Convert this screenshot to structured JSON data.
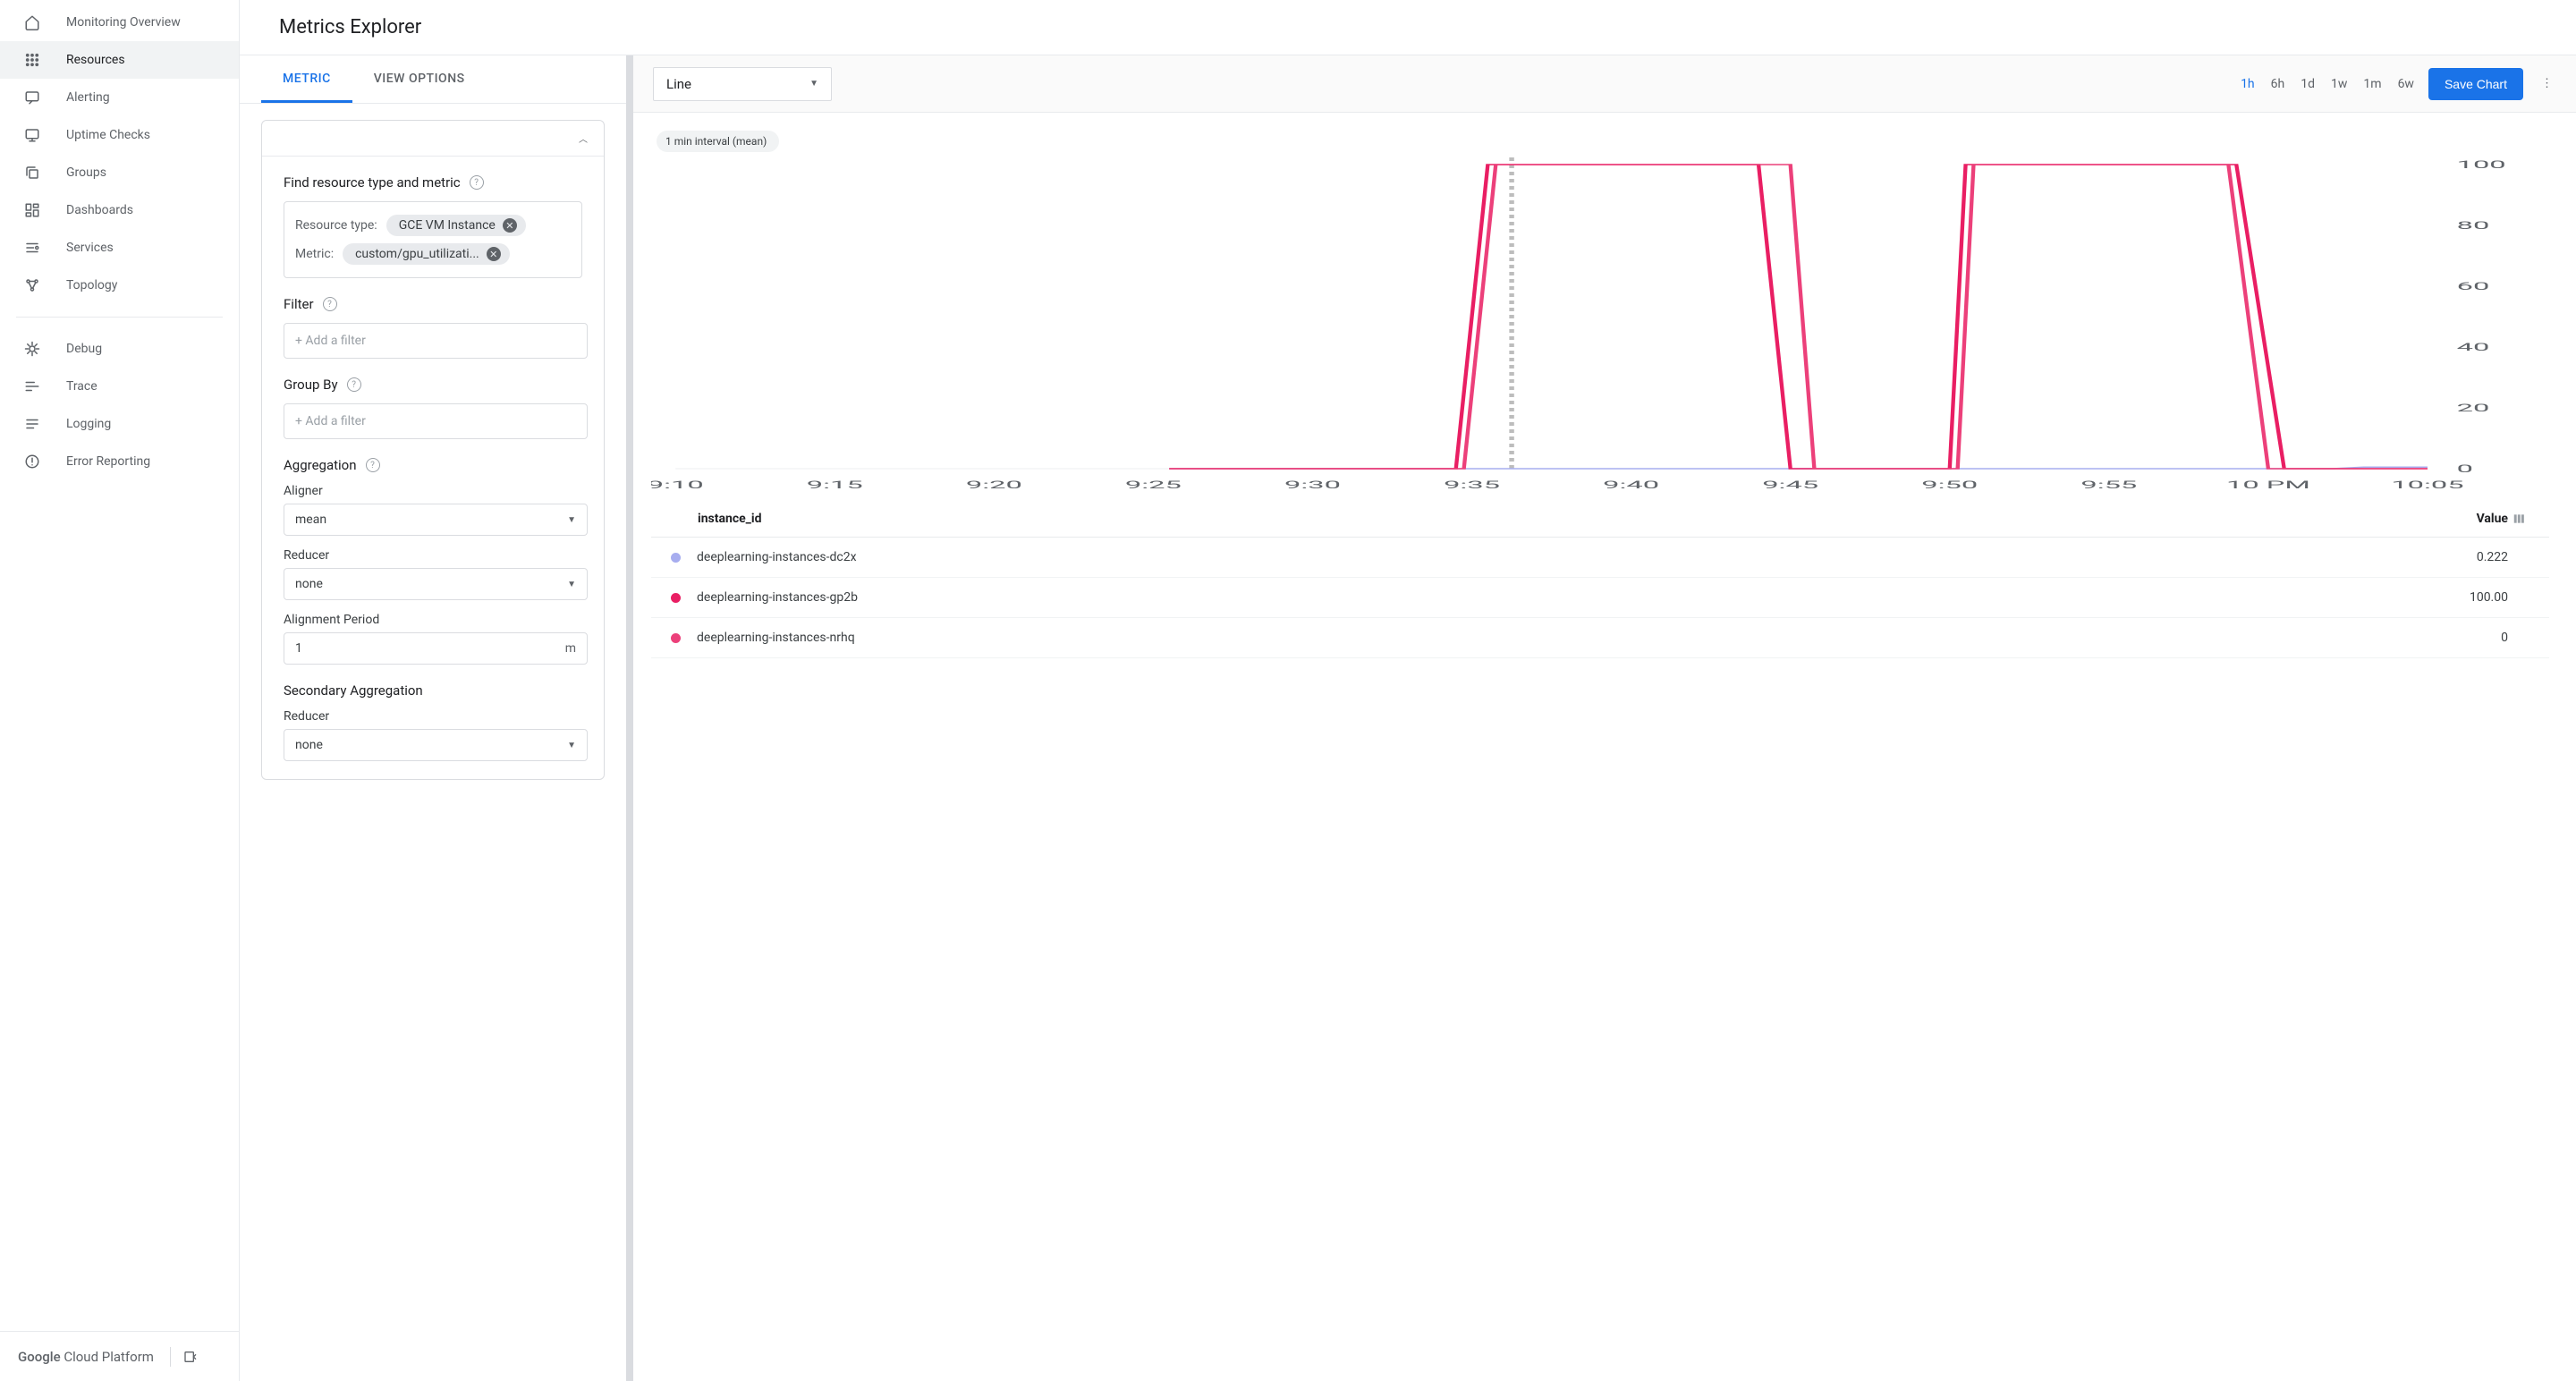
{
  "sidebar": {
    "items": [
      {
        "icon": "home",
        "label": "Monitoring Overview"
      },
      {
        "icon": "grid",
        "label": "Resources",
        "active": true
      },
      {
        "icon": "chat",
        "label": "Alerting"
      },
      {
        "icon": "monitor",
        "label": "Uptime Checks"
      },
      {
        "icon": "copy",
        "label": "Groups"
      },
      {
        "icon": "dashboard",
        "label": "Dashboards"
      },
      {
        "icon": "services",
        "label": "Services"
      },
      {
        "icon": "topology",
        "label": "Topology"
      }
    ],
    "secondary": [
      {
        "icon": "debug",
        "label": "Debug"
      },
      {
        "icon": "trace",
        "label": "Trace"
      },
      {
        "icon": "logging",
        "label": "Logging"
      },
      {
        "icon": "error",
        "label": "Error Reporting"
      }
    ],
    "footer": {
      "brand_bold": "Google",
      "brand_rest": " Cloud Platform"
    }
  },
  "header": {
    "title": "Metrics Explorer"
  },
  "config": {
    "tabs": [
      {
        "label": "METRIC",
        "active": true
      },
      {
        "label": "VIEW OPTIONS"
      }
    ],
    "find_title": "Find resource type and metric",
    "resource_type_label": "Resource type:",
    "resource_type_value": "GCE VM Instance",
    "metric_label": "Metric:",
    "metric_value": "custom/gpu_utilizati...",
    "filter_title": "Filter",
    "filter_placeholder": "+ Add a filter",
    "groupby_title": "Group By",
    "groupby_placeholder": "+ Add a filter",
    "aggregation_title": "Aggregation",
    "aligner_label": "Aligner",
    "aligner_value": "mean",
    "reducer_label": "Reducer",
    "reducer_value": "none",
    "alignment_period_label": "Alignment Period",
    "alignment_period_value": "1",
    "alignment_period_unit": "m",
    "secondary_agg_title": "Secondary Aggregation",
    "secondary_reducer_label": "Reducer",
    "secondary_reducer_value": "none"
  },
  "toolbar": {
    "chart_type": "Line",
    "time_ranges": [
      "1h",
      "6h",
      "1d",
      "1w",
      "1m",
      "6w"
    ],
    "time_active": "1h",
    "save_label": "Save Chart"
  },
  "chart": {
    "interval_label": "1 min interval (mean)",
    "type": "line",
    "ylim": [
      0,
      100
    ],
    "ytick_step": 20,
    "yticks": [
      0,
      20,
      40,
      60,
      80,
      100
    ],
    "y_extra_tick": 120,
    "xticks": [
      "9:10",
      "9:15",
      "9:20",
      "9:25",
      "9:30",
      "9:35",
      "9:40",
      "9:45",
      "9:50",
      "9:55",
      "10 PM",
      "10:05"
    ],
    "cursor_position_index": 5.25,
    "background_color": "#ffffff",
    "grid_color": "#eceff1",
    "axis_color": "#9aa0a6",
    "cursor_color": "#bdbdbd",
    "series": [
      {
        "name": "dc2x",
        "color": "#a7adef",
        "points": [
          [
            3.1,
            0
          ],
          [
            10.4,
            0
          ],
          [
            10.6,
            0.5
          ],
          [
            11,
            0.5
          ]
        ]
      },
      {
        "name": "gp2b",
        "color": "#e91e63",
        "points": [
          [
            3.1,
            0
          ],
          [
            4.9,
            0
          ],
          [
            5.1,
            100
          ],
          [
            6.8,
            100
          ],
          [
            7.0,
            0
          ],
          [
            8.0,
            0
          ],
          [
            8.1,
            100
          ],
          [
            9.8,
            100
          ],
          [
            10.1,
            0
          ],
          [
            11,
            0
          ]
        ]
      },
      {
        "name": "nrhq",
        "color": "#ec407a",
        "points": [
          [
            3.1,
            0
          ],
          [
            4.95,
            0
          ],
          [
            5.15,
            100
          ],
          [
            7.0,
            100
          ],
          [
            7.15,
            0
          ],
          [
            8.05,
            0
          ],
          [
            8.15,
            100
          ],
          [
            9.75,
            100
          ],
          [
            10.0,
            0
          ],
          [
            11,
            0
          ]
        ]
      }
    ]
  },
  "legend": {
    "header_id": "instance_id",
    "header_value": "Value",
    "rows": [
      {
        "color": "#a7adef",
        "id": "deeplearning-instances-dc2x",
        "value": "0.222"
      },
      {
        "color": "#e91e63",
        "id": "deeplearning-instances-gp2b",
        "value": "100.00"
      },
      {
        "color": "#ec407a",
        "id": "deeplearning-instances-nrhq",
        "value": "0"
      }
    ]
  }
}
